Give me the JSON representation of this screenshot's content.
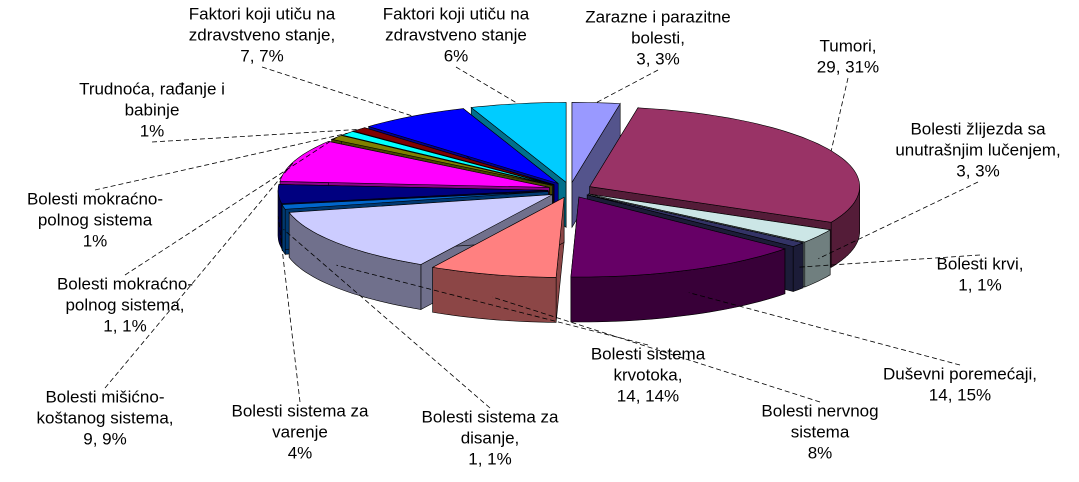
{
  "chart_data": {
    "type": "pie3d",
    "categories": [
      [
        "Zarazne i parazitne",
        "bolesti,"
      ],
      [
        "Tumori,"
      ],
      [
        "Bolesti žlijezda sa",
        "unutrašnjim lučenjem,"
      ],
      [
        "Bolesti krvi,"
      ],
      [
        "Duševni poremećaji,"
      ],
      [
        "Bolesti nervnog",
        "sistema"
      ],
      [
        "Bolesti sistema",
        "krvotoka,"
      ],
      [
        "Bolesti  sistema za",
        "disanje,"
      ],
      [
        "Bolesti sistema za",
        "varenje"
      ],
      [
        "Bolesti mišićno-",
        "koštanog sistema,"
      ],
      [
        "Bolesti mokraćno-",
        "polnog sistema,"
      ],
      [
        "Bolesti mokraćno-",
        "polnog sistema"
      ],
      [
        "Trudnoća, rađanje i",
        "babinje"
      ],
      [
        "Faktori koji utiču na",
        "zdravstveno stanje,"
      ],
      [
        "Faktori koji utiču na",
        "zdravstveno stanje"
      ]
    ],
    "values": [
      3,
      31,
      3,
      1,
      15,
      8,
      14,
      1,
      4,
      9,
      1,
      1,
      1,
      7,
      6
    ],
    "value_labels": [
      "3, 3%",
      "29, 31%",
      "3, 3%",
      "1, 1%",
      "14, 15%",
      "8%",
      "14, 14%",
      "1, 1%",
      "4%",
      "9, 9%",
      "1, 1%",
      "1%",
      "1%",
      "7, 7%",
      "6%"
    ],
    "colors": [
      "#9999ff",
      "#993366",
      "#cce6e6",
      "#333366",
      "#660066",
      "#ff8080",
      "#ccccff",
      "#0066cc",
      "#000080",
      "#ff00ff",
      "#808000",
      "#00ffff",
      "#800000",
      "#0000ff",
      "#00ccff"
    ]
  }
}
